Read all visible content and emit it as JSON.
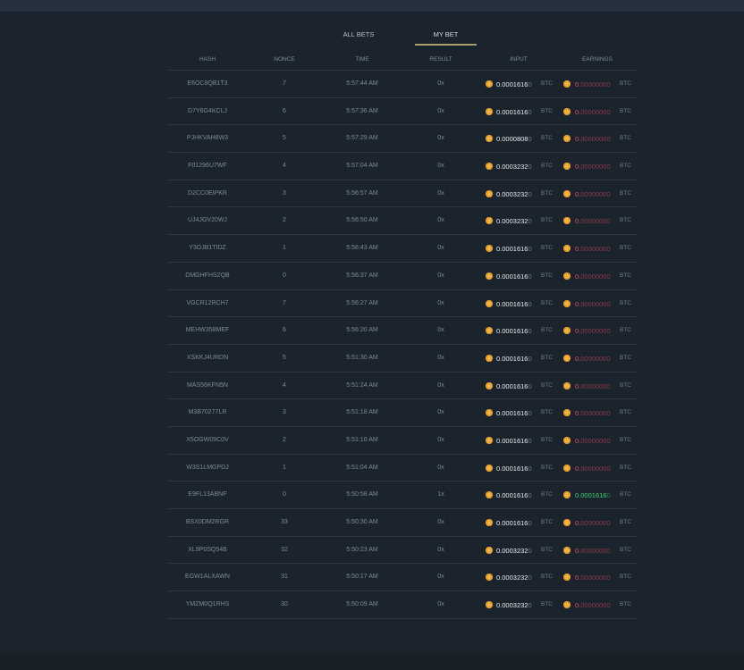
{
  "tabs": [
    {
      "label": "ALL BETS",
      "active": false
    },
    {
      "label": "MY BET",
      "active": true
    }
  ],
  "columns": [
    "HASH",
    "NONCE",
    "TIME",
    "RESULT",
    "INPUT",
    "EARNINGS"
  ],
  "currency": "BTC",
  "colors": {
    "accent": "#a89f6a",
    "coin": "#f0b44c",
    "loss": "#e0506a",
    "win": "#48d17a"
  },
  "rows": [
    {
      "hash": "E6OC8QB1T3",
      "nonce": "7",
      "time": "5:57:44 AM",
      "result": "0x",
      "input": "0.0001616",
      "input_tail": "0",
      "earn": "0.",
      "earn_tail": "00000000",
      "win": false
    },
    {
      "hash": "D7Y6G4KCLJ",
      "nonce": "6",
      "time": "5:57:36 AM",
      "result": "0x",
      "input": "0.0001616",
      "input_tail": "0",
      "earn": "0.",
      "earn_tail": "00000000",
      "win": false
    },
    {
      "hash": "PJHKVAH8W3",
      "nonce": "5",
      "time": "5:57:29 AM",
      "result": "0x",
      "input": "0.0000808",
      "input_tail": "0",
      "earn": "0.",
      "earn_tail": "00000000",
      "win": false
    },
    {
      "hash": "F01296U7WF",
      "nonce": "4",
      "time": "5:57:04 AM",
      "result": "0x",
      "input": "0.0003232",
      "input_tail": "0",
      "earn": "0.",
      "earn_tail": "00000000",
      "win": false
    },
    {
      "hash": "D2CC0EIPKR",
      "nonce": "3",
      "time": "5:56:57 AM",
      "result": "0x",
      "input": "0.0003232",
      "input_tail": "0",
      "earn": "0.",
      "earn_tail": "00000000",
      "win": false
    },
    {
      "hash": "UJ4JGV20WJ",
      "nonce": "2",
      "time": "5:56:50 AM",
      "result": "0x",
      "input": "0.0003232",
      "input_tail": "0",
      "earn": "0.",
      "earn_tail": "00000000",
      "win": false
    },
    {
      "hash": "Y3OJB1TIDZ",
      "nonce": "1",
      "time": "5:56:43 AM",
      "result": "0x",
      "input": "0.0001616",
      "input_tail": "0",
      "earn": "0.",
      "earn_tail": "00000000",
      "win": false
    },
    {
      "hash": "DMGHFHS2QB",
      "nonce": "0",
      "time": "5:56:37 AM",
      "result": "0x",
      "input": "0.0001616",
      "input_tail": "0",
      "earn": "0.",
      "earn_tail": "00000000",
      "win": false
    },
    {
      "hash": "VGCR12RCH7",
      "nonce": "7",
      "time": "5:56:27 AM",
      "result": "0x",
      "input": "0.0001616",
      "input_tail": "0",
      "earn": "0.",
      "earn_tail": "00000000",
      "win": false
    },
    {
      "hash": "MEHW358MEF",
      "nonce": "6",
      "time": "5:56:20 AM",
      "result": "0x",
      "input": "0.0001616",
      "input_tail": "0",
      "earn": "0.",
      "earn_tail": "00000000",
      "win": false
    },
    {
      "hash": "XSKKJ4URDN",
      "nonce": "5",
      "time": "5:51:30 AM",
      "result": "0x",
      "input": "0.0001616",
      "input_tail": "0",
      "earn": "0.",
      "earn_tail": "00000000",
      "win": false
    },
    {
      "hash": "MAS56KFN5N",
      "nonce": "4",
      "time": "5:51:24 AM",
      "result": "0x",
      "input": "0.0001616",
      "input_tail": "0",
      "earn": "0.",
      "earn_tail": "00000000",
      "win": false
    },
    {
      "hash": "M3B70277LR",
      "nonce": "3",
      "time": "5:51:18 AM",
      "result": "0x",
      "input": "0.0001616",
      "input_tail": "0",
      "earn": "0.",
      "earn_tail": "00000000",
      "win": false
    },
    {
      "hash": "X5OGW09C0V",
      "nonce": "2",
      "time": "5:51:10 AM",
      "result": "0x",
      "input": "0.0001616",
      "input_tail": "0",
      "earn": "0.",
      "earn_tail": "00000000",
      "win": false
    },
    {
      "hash": "W3S1LMGPDJ",
      "nonce": "1",
      "time": "5:51:04 AM",
      "result": "0x",
      "input": "0.0001616",
      "input_tail": "0",
      "earn": "0.",
      "earn_tail": "00000000",
      "win": false
    },
    {
      "hash": "E9FL13ABNF",
      "nonce": "0",
      "time": "5:50:58 AM",
      "result": "1x",
      "input": "0.0001616",
      "input_tail": "0",
      "earn": "0.0001616",
      "earn_tail": "0",
      "win": true
    },
    {
      "hash": "BSX0DM2RGR",
      "nonce": "33",
      "time": "5:50:30 AM",
      "result": "0x",
      "input": "0.0001616",
      "input_tail": "0",
      "earn": "0.",
      "earn_tail": "00000000",
      "win": false
    },
    {
      "hash": "XL9P0SQ54B",
      "nonce": "32",
      "time": "5:50:23 AM",
      "result": "0x",
      "input": "0.0003232",
      "input_tail": "0",
      "earn": "0.",
      "earn_tail": "00000000",
      "win": false
    },
    {
      "hash": "EGW1ALXAWN",
      "nonce": "31",
      "time": "5:50:17 AM",
      "result": "0x",
      "input": "0.0003232",
      "input_tail": "0",
      "earn": "0.",
      "earn_tail": "00000000",
      "win": false
    },
    {
      "hash": "YMZM0Q1RHS",
      "nonce": "30",
      "time": "5:50:09 AM",
      "result": "0x",
      "input": "0.0003232",
      "input_tail": "0",
      "earn": "0.",
      "earn_tail": "00000000",
      "win": false
    }
  ]
}
